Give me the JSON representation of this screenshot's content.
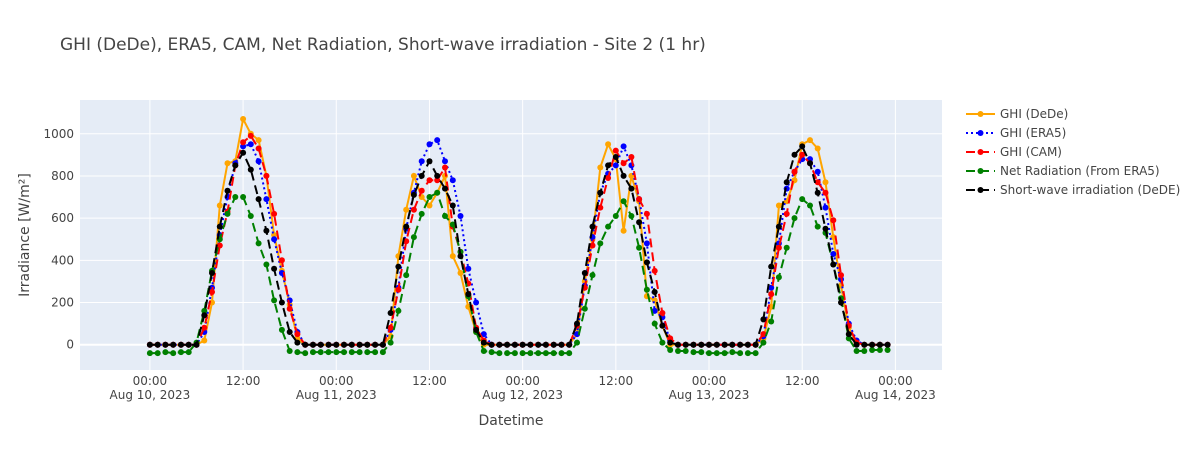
{
  "chart_data": {
    "type": "line",
    "title": "GHI (DeDe), ERA5, CAM, Net Radiation, Short-wave irradiation - Site 2 (1 hr)",
    "xlabel": "Datetime",
    "ylabel": "Irradiance [W/m²]",
    "x_start": "2023-08-10 00:00",
    "x_step_hours": 1,
    "x_range": [
      "2023-08-09 15:00",
      "2023-08-14 06:00"
    ],
    "ylim": [
      -120,
      1160
    ],
    "yticks": [
      0,
      200,
      400,
      600,
      800,
      1000
    ],
    "x_ticks": [
      {
        "at": "2023-08-10 00:00",
        "line1": "00:00",
        "line2": "Aug 10, 2023"
      },
      {
        "at": "2023-08-10 12:00",
        "line1": "12:00",
        "line2": ""
      },
      {
        "at": "2023-08-11 00:00",
        "line1": "00:00",
        "line2": "Aug 11, 2023"
      },
      {
        "at": "2023-08-11 12:00",
        "line1": "12:00",
        "line2": ""
      },
      {
        "at": "2023-08-12 00:00",
        "line1": "00:00",
        "line2": "Aug 12, 2023"
      },
      {
        "at": "2023-08-12 12:00",
        "line1": "12:00",
        "line2": ""
      },
      {
        "at": "2023-08-13 00:00",
        "line1": "00:00",
        "line2": "Aug 13, 2023"
      },
      {
        "at": "2023-08-13 12:00",
        "line1": "12:00",
        "line2": ""
      },
      {
        "at": "2023-08-14 00:00",
        "line1": "00:00",
        "line2": "Aug 14, 2023"
      }
    ],
    "grid": true,
    "legend_position": "right",
    "series": [
      {
        "name": "GHI (DeDe)",
        "color": "#FFA500",
        "dash": "solid",
        "values": [
          0,
          0,
          0,
          0,
          0,
          0,
          0,
          20,
          200,
          660,
          860,
          870,
          1070,
          1000,
          970,
          800,
          520,
          350,
          190,
          30,
          0,
          0,
          0,
          0,
          0,
          0,
          0,
          0,
          0,
          0,
          0,
          40,
          420,
          640,
          800,
          700,
          660,
          720,
          800,
          420,
          340,
          180,
          60,
          0,
          0,
          0,
          0,
          0,
          0,
          0,
          0,
          0,
          0,
          0,
          0,
          50,
          300,
          500,
          840,
          950,
          880,
          540,
          800,
          680,
          230,
          210,
          90,
          0,
          0,
          0,
          0,
          0,
          0,
          0,
          0,
          0,
          0,
          0,
          0,
          30,
          180,
          660,
          680,
          780,
          950,
          970,
          930,
          770,
          510,
          280,
          80,
          10,
          0,
          0,
          0,
          0
        ]
      },
      {
        "name": "GHI (ERA5)",
        "color": "#0000FF",
        "dash": "dot",
        "values": [
          0,
          0,
          0,
          0,
          0,
          0,
          0,
          60,
          270,
          520,
          700,
          860,
          940,
          950,
          870,
          690,
          500,
          340,
          210,
          60,
          0,
          0,
          0,
          0,
          0,
          0,
          0,
          0,
          0,
          0,
          0,
          70,
          270,
          550,
          720,
          870,
          950,
          970,
          870,
          780,
          610,
          360,
          200,
          50,
          0,
          0,
          0,
          0,
          0,
          0,
          0,
          0,
          0,
          0,
          0,
          50,
          280,
          510,
          720,
          810,
          850,
          940,
          850,
          690,
          480,
          160,
          130,
          20,
          0,
          0,
          0,
          0,
          0,
          0,
          0,
          0,
          0,
          0,
          0,
          40,
          270,
          480,
          740,
          820,
          880,
          880,
          820,
          650,
          430,
          310,
          100,
          20,
          0,
          0,
          0,
          0
        ]
      },
      {
        "name": "GHI (CAM)",
        "color": "#FF0000",
        "dash": "dash",
        "values": [
          0,
          0,
          0,
          0,
          0,
          0,
          0,
          80,
          250,
          470,
          630,
          850,
          960,
          990,
          930,
          800,
          620,
          400,
          170,
          50,
          0,
          0,
          0,
          0,
          0,
          0,
          0,
          0,
          0,
          0,
          0,
          80,
          260,
          490,
          640,
          730,
          780,
          780,
          840,
          560,
          440,
          290,
          80,
          20,
          0,
          0,
          0,
          0,
          0,
          0,
          0,
          0,
          0,
          0,
          0,
          90,
          270,
          470,
          650,
          790,
          920,
          860,
          890,
          690,
          620,
          350,
          150,
          30,
          0,
          0,
          0,
          0,
          0,
          0,
          0,
          0,
          0,
          0,
          0,
          50,
          240,
          460,
          620,
          820,
          900,
          860,
          770,
          720,
          590,
          330,
          90,
          10,
          0,
          0,
          0,
          0
        ]
      },
      {
        "name": "Net Radiation (From ERA5)",
        "color": "#008000",
        "dash": "dash",
        "values": [
          -40,
          -40,
          -35,
          -40,
          -35,
          -35,
          10,
          160,
          350,
          500,
          620,
          700,
          700,
          610,
          480,
          380,
          210,
          70,
          -30,
          -35,
          -40,
          -35,
          -35,
          -35,
          -35,
          -35,
          -35,
          -35,
          -35,
          -35,
          -35,
          10,
          160,
          330,
          510,
          620,
          700,
          720,
          610,
          570,
          440,
          230,
          60,
          -30,
          -35,
          -40,
          -40,
          -40,
          -40,
          -40,
          -40,
          -40,
          -40,
          -40,
          -40,
          10,
          170,
          330,
          480,
          560,
          610,
          680,
          610,
          460,
          260,
          100,
          10,
          -25,
          -30,
          -30,
          -35,
          -35,
          -40,
          -40,
          -40,
          -35,
          -40,
          -40,
          -40,
          10,
          110,
          320,
          460,
          600,
          690,
          660,
          560,
          530,
          380,
          220,
          30,
          -30,
          -30,
          -25,
          -25,
          -25
        ]
      },
      {
        "name": "Short-wave irradiation (DeDE)",
        "color": "#000000",
        "dash": "dash",
        "values": [
          0,
          0,
          0,
          0,
          0,
          0,
          0,
          140,
          340,
          560,
          730,
          850,
          910,
          830,
          690,
          540,
          360,
          200,
          60,
          10,
          0,
          0,
          0,
          0,
          0,
          0,
          0,
          0,
          0,
          0,
          0,
          150,
          370,
          560,
          710,
          800,
          870,
          800,
          740,
          660,
          420,
          240,
          70,
          10,
          0,
          0,
          0,
          0,
          0,
          0,
          0,
          0,
          0,
          0,
          0,
          100,
          340,
          560,
          720,
          850,
          890,
          800,
          740,
          580,
          390,
          250,
          90,
          10,
          0,
          0,
          0,
          0,
          0,
          0,
          0,
          0,
          0,
          0,
          0,
          120,
          370,
          560,
          770,
          900,
          940,
          860,
          720,
          550,
          380,
          200,
          50,
          0,
          0,
          0,
          0,
          0
        ]
      }
    ]
  }
}
